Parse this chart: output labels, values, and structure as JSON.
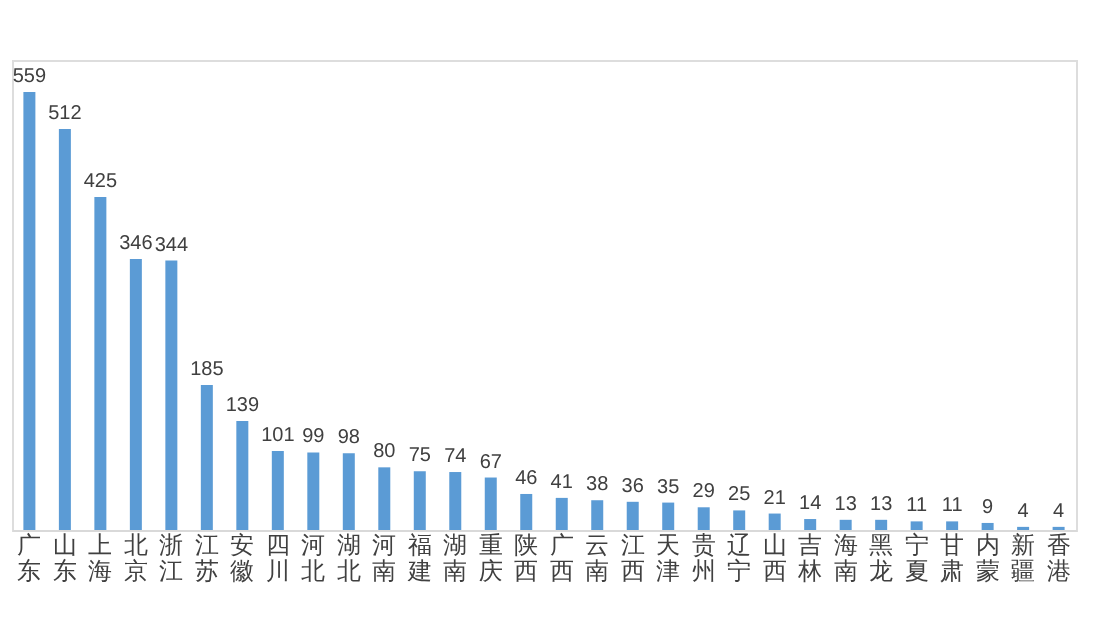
{
  "chart_data": {
    "type": "bar",
    "categories": [
      "广东",
      "山东",
      "上海",
      "北京",
      "浙江",
      "江苏",
      "安徽",
      "四川",
      "河北",
      "湖北",
      "河南",
      "福建",
      "湖南",
      "重庆",
      "陕西",
      "广西",
      "云南",
      "江西",
      "天津",
      "贵州",
      "辽宁",
      "山西",
      "吉林",
      "海南",
      "黑龙",
      "宁夏",
      "甘肃",
      "内蒙",
      "新疆",
      "香港"
    ],
    "values": [
      559,
      512,
      425,
      346,
      344,
      185,
      139,
      101,
      99,
      98,
      80,
      75,
      74,
      67,
      46,
      41,
      38,
      36,
      35,
      29,
      25,
      21,
      14,
      13,
      13,
      11,
      11,
      9,
      4,
      4
    ],
    "color": "#5b9bd5",
    "data_labels": true,
    "grid": false,
    "tick_labels": "x"
  }
}
